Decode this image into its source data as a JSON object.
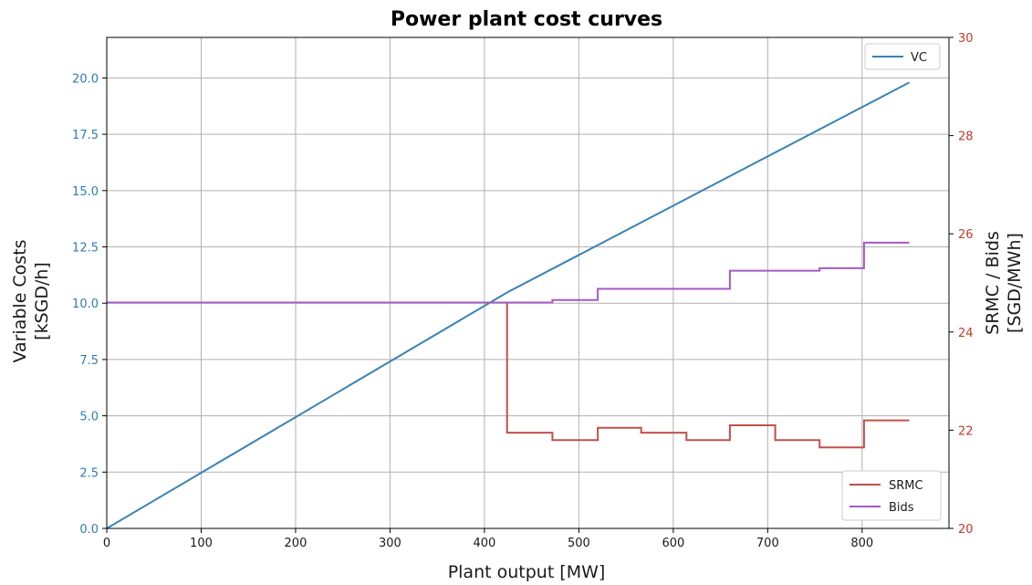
{
  "chart_data": {
    "type": "line",
    "title": "Power plant cost curves",
    "xlabel": "Plant output [MW]",
    "ylabel_left": [
      "Variable Costs",
      "[kSGD/h]"
    ],
    "ylabel_right": [
      "SRMC / Bids",
      "[SGD/MWh]"
    ],
    "xlim": [
      0,
      892
    ],
    "ylim_left": [
      0,
      21.8
    ],
    "ylim_right": [
      20,
      30
    ],
    "x_ticks": [
      0,
      100,
      200,
      300,
      400,
      500,
      600,
      700,
      800
    ],
    "y_left_ticks": [
      "0.0",
      "2.5",
      "5.0",
      "7.5",
      "10.0",
      "12.5",
      "15.0",
      "17.5",
      "20.0"
    ],
    "y_right_ticks": [
      "20",
      "22",
      "24",
      "26",
      "28",
      "30"
    ],
    "grid": true,
    "legend_left_axis": "top-right",
    "legend_right_axis": "bottom-right",
    "colors": {
      "vc": "#3a82b5",
      "srmc": "#c0504a",
      "bids": "#a35bc4",
      "left_axis": "#2e7cb8",
      "right_axis": "#c0392b"
    },
    "series": [
      {
        "name": "VC",
        "axis": "left",
        "kind": "line",
        "x": [
          0,
          425,
          850
        ],
        "y": [
          0,
          10.5,
          19.8
        ]
      },
      {
        "name": "SRMC",
        "axis": "right",
        "kind": "step",
        "x": [
          0,
          424,
          424,
          472,
          472,
          520,
          520,
          566,
          566,
          614,
          614,
          660,
          660,
          708,
          708,
          755,
          755,
          802,
          802,
          850
        ],
        "y": [
          24.6,
          24.6,
          21.95,
          21.95,
          21.8,
          21.8,
          22.05,
          22.05,
          21.95,
          21.95,
          21.8,
          21.8,
          22.1,
          22.1,
          21.8,
          21.8,
          21.65,
          21.65,
          22.2,
          22.2
        ]
      },
      {
        "name": "Bids",
        "axis": "right",
        "kind": "step",
        "x": [
          0,
          472,
          472,
          520,
          520,
          660,
          660,
          755,
          755,
          802,
          802,
          850
        ],
        "y": [
          24.6,
          24.6,
          24.65,
          24.65,
          24.88,
          24.88,
          25.25,
          25.25,
          25.3,
          25.3,
          25.82,
          25.82
        ]
      }
    ]
  }
}
